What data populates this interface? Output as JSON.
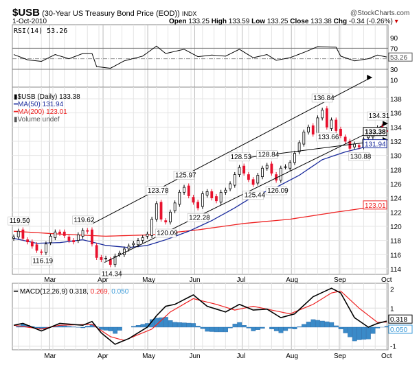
{
  "header": {
    "symbol": "$USB",
    "description": "(30-Year US Treasury Bond Price (EOD))",
    "exchange": "INDX",
    "watermark": "@StockCharts.com",
    "date": "1-Oct-2010",
    "open_label": "Open",
    "open": "133.25",
    "high_label": "High",
    "high": "133.59",
    "low_label": "Low",
    "low": "133.25",
    "close_label": "Close",
    "close": "133.38",
    "chg_label": "Chg",
    "chg": "-0.34 (-0.26%)",
    "chg_icon": "down-triangle"
  },
  "colors": {
    "up": "#000000",
    "down": "#e8112d",
    "ma50": "#1a2b9c",
    "ma200": "#ee2222",
    "macd": "#000000",
    "signal": "#ee2222",
    "hist": "#3a8ac8",
    "grid": "#d8d8d8"
  },
  "chart_data": [
    {
      "type": "line",
      "panel": "RSI",
      "title": "RSI(14) 53.26",
      "yticks": [
        90,
        70,
        30,
        10
      ],
      "ylim": [
        10,
        100
      ],
      "current_label": "53.26",
      "rsi": [
        [
          0,
          58
        ],
        [
          3,
          48
        ],
        [
          6,
          45
        ],
        [
          9,
          58
        ],
        [
          12,
          50
        ],
        [
          15,
          60
        ],
        [
          17,
          60
        ],
        [
          18,
          35
        ],
        [
          21,
          32
        ],
        [
          24,
          46
        ],
        [
          28,
          55
        ],
        [
          31,
          74
        ],
        [
          33,
          60
        ],
        [
          37,
          68
        ],
        [
          40,
          54
        ],
        [
          43,
          57
        ],
        [
          46,
          55
        ],
        [
          49,
          68
        ],
        [
          52,
          52
        ],
        [
          55,
          58
        ],
        [
          57,
          47
        ],
        [
          60,
          52
        ],
        [
          63,
          62
        ],
        [
          66,
          73
        ],
        [
          70,
          72
        ],
        [
          71,
          55
        ],
        [
          74,
          46
        ],
        [
          77,
          50
        ],
        [
          79,
          57
        ],
        [
          81,
          53.26
        ]
      ]
    },
    {
      "type": "candlestick",
      "panel": "Price",
      "legend": [
        "$USB (Daily) 133.38",
        "MA(50) 131.94",
        "MA(200) 123.01",
        "Volume undef"
      ],
      "ylim": [
        113,
        139
      ],
      "yticks": [
        114,
        116,
        118,
        120,
        122,
        124,
        126,
        128,
        130,
        132,
        134,
        136,
        138
      ],
      "x_months": [
        [
          "Mar",
          7.8
        ],
        [
          "Apr",
          19.4
        ],
        [
          "May",
          29.1
        ],
        [
          "Jun",
          39.3
        ],
        [
          "Jul",
          49.6
        ],
        [
          "Aug",
          60.3
        ],
        [
          "Sep",
          70.7
        ],
        [
          "Oct",
          81
        ]
      ],
      "closes": [
        118.5,
        119.3,
        118.3,
        117.8,
        117.2,
        116.6,
        116.3,
        117.5,
        118.6,
        119.2,
        119.0,
        118.7,
        118.0,
        117.8,
        118.8,
        119.4,
        119.3,
        117.5,
        115.6,
        115.3,
        115.5,
        114.6,
        115.8,
        116.2,
        116.8,
        117.2,
        117.6,
        118.0,
        118.4,
        118.9,
        121.0,
        123.2,
        121.0,
        120.6,
        122.0,
        123.3,
        124.8,
        125.5,
        124.3,
        123.4,
        122.6,
        124.6,
        124.9,
        124.0,
        123.6,
        124.8,
        125.1,
        126.0,
        127.3,
        128.3,
        127.5,
        126.6,
        125.9,
        127.2,
        128.2,
        128.6,
        127.5,
        126.5,
        128.2,
        128.4,
        129.0,
        130.3,
        131.8,
        133.3,
        134.0,
        133.0,
        135.3,
        136.4,
        134.0,
        135.0,
        133.5,
        132.8,
        132.0,
        131.0,
        131.6,
        131.2,
        132.3,
        132.8,
        133.2,
        133.9,
        133.7,
        133.38
      ],
      "ma50": [
        [
          0,
          118.3
        ],
        [
          5,
          117.6
        ],
        [
          10,
          117.7
        ],
        [
          15,
          118.1
        ],
        [
          20,
          117.3
        ],
        [
          25,
          117.0
        ],
        [
          29,
          117.3
        ],
        [
          33,
          118.1
        ],
        [
          38,
          119.3
        ],
        [
          43,
          120.8
        ],
        [
          48,
          122.6
        ],
        [
          52,
          124.2
        ],
        [
          57,
          125.5
        ],
        [
          62,
          127.2
        ],
        [
          67,
          129.4
        ],
        [
          72,
          130.5
        ],
        [
          77,
          131.3
        ],
        [
          81,
          131.94
        ]
      ],
      "ma200": [
        [
          0,
          119.3
        ],
        [
          10,
          118.9
        ],
        [
          20,
          118.6
        ],
        [
          30,
          118.8
        ],
        [
          40,
          119.5
        ],
        [
          50,
          120.4
        ],
        [
          60,
          121.0
        ],
        [
          70,
          122.0
        ],
        [
          81,
          123.01
        ]
      ],
      "annotations": [
        [
          "119.50",
          1,
          119.5,
          "above"
        ],
        [
          "116.19",
          6,
          116.19,
          "below"
        ],
        [
          "119.62",
          15,
          119.62,
          "above"
        ],
        [
          "114.34",
          21,
          114.34,
          "below"
        ],
        [
          "123.78",
          31,
          123.78,
          "above"
        ],
        [
          "120.09",
          33,
          120.09,
          "below"
        ],
        [
          "125.97",
          37,
          125.97,
          "above"
        ],
        [
          "122.28",
          40,
          122.28,
          "below"
        ],
        [
          "128.53",
          49,
          128.53,
          "above"
        ],
        [
          "125.44",
          52,
          125.44,
          "below"
        ],
        [
          "128.84",
          55,
          128.84,
          "above"
        ],
        [
          "126.09",
          57,
          126.09,
          "below"
        ],
        [
          "136.84",
          67,
          136.84,
          "above"
        ],
        [
          "133.66",
          68,
          133.66,
          "below"
        ],
        [
          "130.88",
          75,
          130.88,
          "below"
        ],
        [
          "134.31",
          79,
          134.31,
          "above"
        ]
      ],
      "trendlines": [
        [
          16.9,
          120.3,
          77.6,
          141.0
        ],
        [
          19.7,
          114.9,
          81,
          134.5
        ],
        [
          49.6,
          129.6,
          81,
          132.2
        ]
      ],
      "value_labels": {
        "close": "133.38",
        "ma50": "131.94",
        "ma200": "123.01"
      }
    },
    {
      "type": "line",
      "panel": "MACD",
      "title_prefix": "MACD(12,26,9) 0.318,",
      "title_signal": "0.269,",
      "title_hist": "0.050",
      "ylim": [
        -1.2,
        2.3
      ],
      "yticks": [
        2,
        1,
        -1
      ],
      "macd": [
        [
          0,
          0.1
        ],
        [
          2,
          0.2
        ],
        [
          6,
          -0.2
        ],
        [
          10,
          0.2
        ],
        [
          15,
          0.1
        ],
        [
          17,
          0.3
        ],
        [
          19,
          -0.3
        ],
        [
          22,
          -0.9
        ],
        [
          25,
          -0.6
        ],
        [
          29,
          0.0
        ],
        [
          31,
          0.6
        ],
        [
          33,
          1.1
        ],
        [
          35,
          1.2
        ],
        [
          39,
          1.7
        ],
        [
          42,
          1.1
        ],
        [
          46,
          0.8
        ],
        [
          49,
          1.2
        ],
        [
          52,
          0.9
        ],
        [
          55,
          0.95
        ],
        [
          58,
          0.5
        ],
        [
          61,
          0.7
        ],
        [
          65,
          1.6
        ],
        [
          69,
          2.05
        ],
        [
          71,
          1.8
        ],
        [
          74,
          0.5
        ],
        [
          77,
          0.0
        ],
        [
          79,
          0.2
        ],
        [
          81,
          0.318
        ]
      ],
      "signal": [
        [
          0,
          0.1
        ],
        [
          6,
          -0.1
        ],
        [
          10,
          0.1
        ],
        [
          17,
          0.15
        ],
        [
          21,
          -0.5
        ],
        [
          24,
          -0.7
        ],
        [
          30,
          -0.1
        ],
        [
          34,
          0.8
        ],
        [
          39,
          1.5
        ],
        [
          44,
          1.2
        ],
        [
          48,
          0.9
        ],
        [
          52,
          1.1
        ],
        [
          56,
          0.9
        ],
        [
          60,
          0.7
        ],
        [
          65,
          1.2
        ],
        [
          69,
          1.8
        ],
        [
          71,
          1.9
        ],
        [
          75,
          1.0
        ],
        [
          79,
          0.25
        ],
        [
          81,
          0.269
        ]
      ],
      "value_labels": {
        "macd": "0.318",
        "hist": "0.050"
      }
    }
  ]
}
